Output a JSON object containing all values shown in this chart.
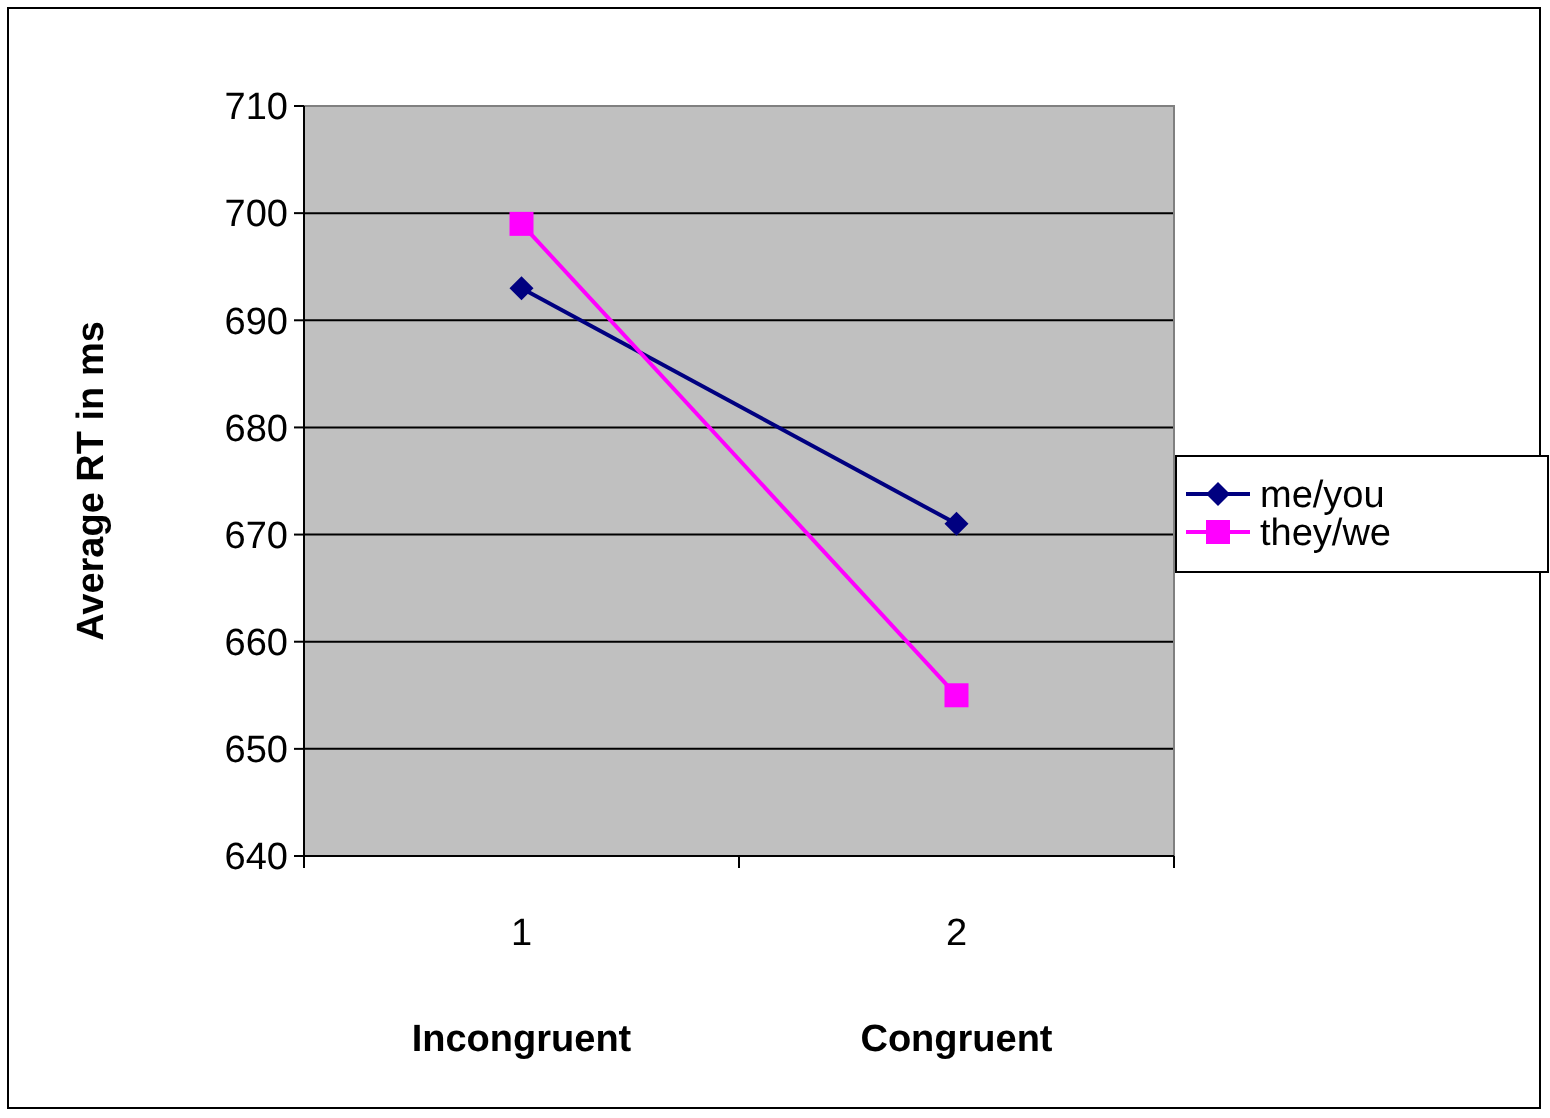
{
  "chart_data": {
    "type": "line",
    "ylabel": "Average RT in ms",
    "categories": [
      "1",
      "2"
    ],
    "series": [
      {
        "name": "me/you",
        "color": "#000080",
        "marker": "diamond",
        "values": [
          693,
          671
        ]
      },
      {
        "name": "they/we",
        "color": "#ff00ff",
        "marker": "square",
        "values": [
          699,
          655
        ]
      }
    ],
    "ylim": [
      640,
      710
    ],
    "yticks": [
      640,
      650,
      660,
      670,
      680,
      690,
      700,
      710
    ],
    "grid": "y",
    "legend": "right",
    "annotations": [
      "Incongruent",
      "Congruent"
    ]
  }
}
